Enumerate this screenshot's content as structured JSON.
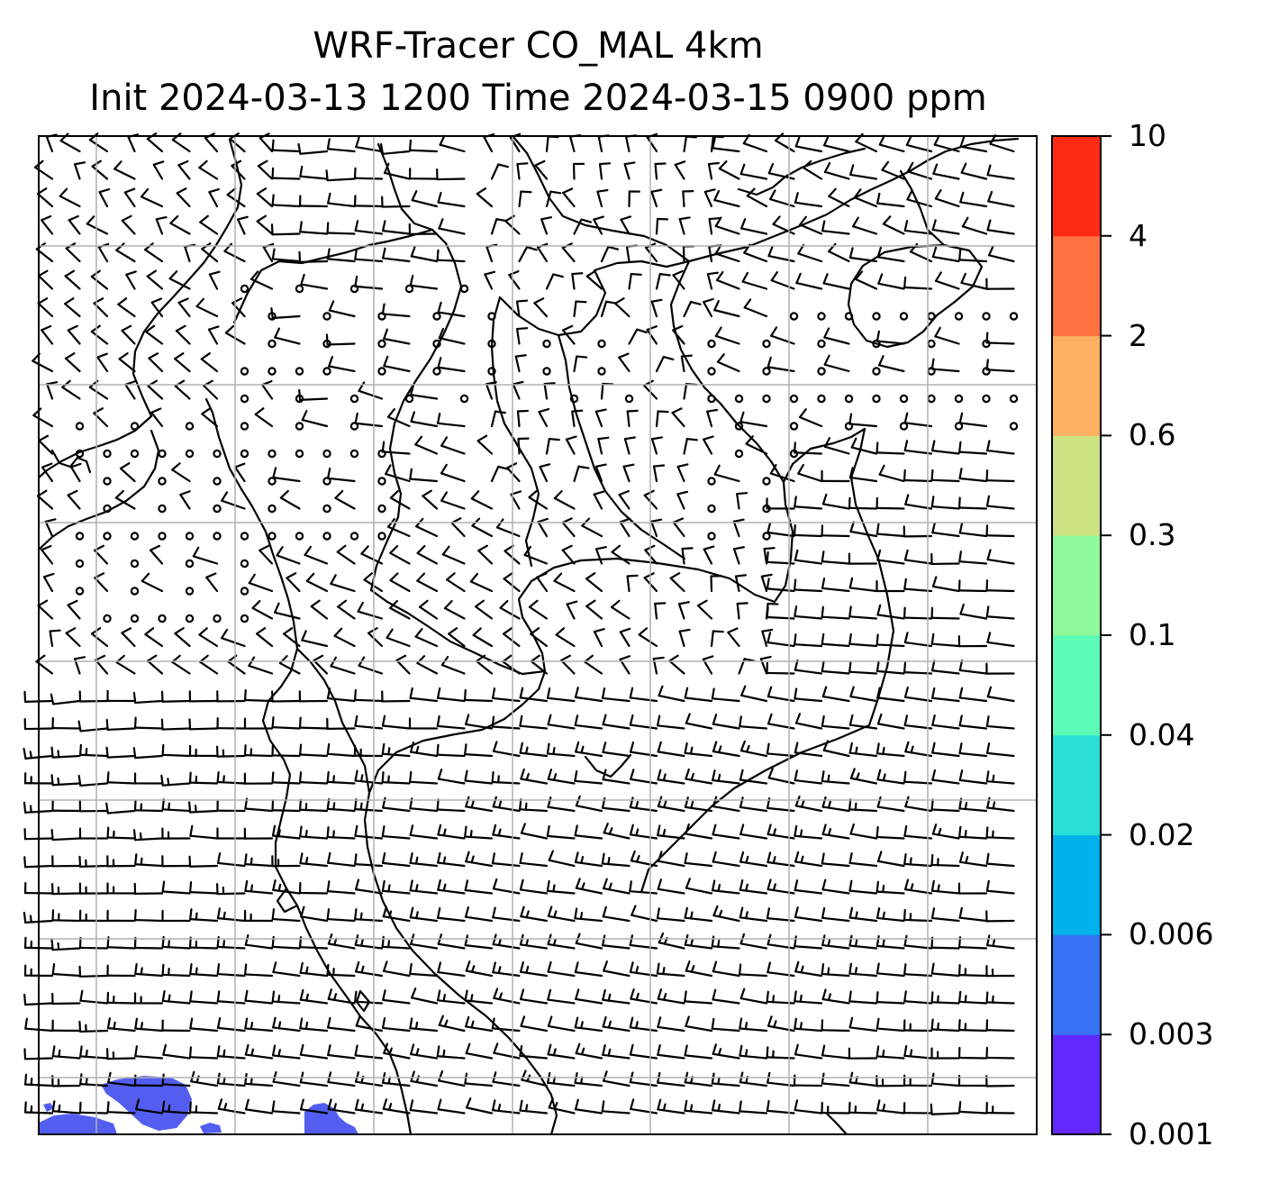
{
  "figure": {
    "title_line_1": "WRF-Tracer CO_MAL 4km",
    "title_line_2": "Init 2024-03-13 1200 Time 2024-03-15 0900 ppm"
  },
  "colorbar": {
    "tick_labels": [
      "0.001",
      "0.003",
      "0.006",
      "0.02",
      "0.04",
      "0.1",
      "0.3",
      "0.6",
      "2",
      "4",
      "10"
    ],
    "colors": [
      "#6229fe",
      "#3573f4",
      "#00b1ec",
      "#2adfd6",
      "#5cfbb6",
      "#8ef99b",
      "#cce283",
      "#feb162",
      "#fe7140",
      "#fe2b14"
    ]
  },
  "map": {
    "plotted_field": "CO_MAL tracer concentration (ppm) with wind barbs",
    "tracer_plumes_color": "#4a55f0",
    "grid_color": "#b0b0b0"
  }
}
